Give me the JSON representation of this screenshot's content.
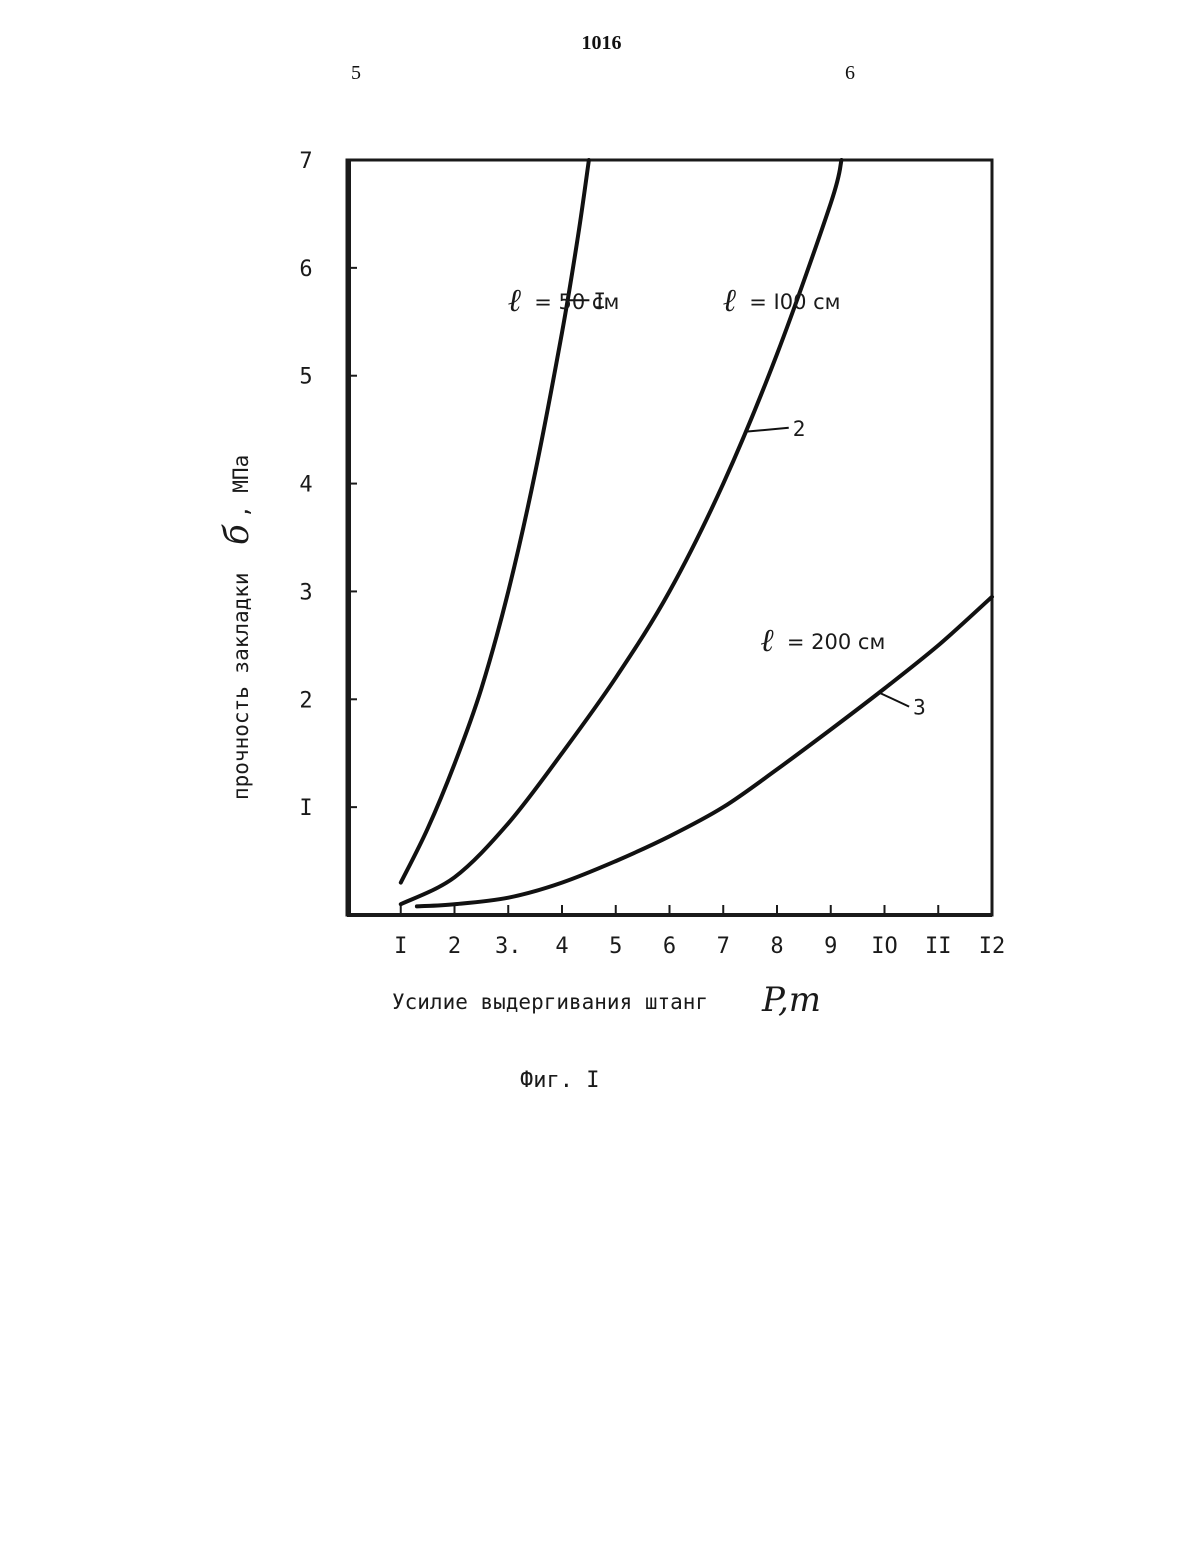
{
  "header": {
    "page_number": "1016",
    "column_left": "5",
    "column_right": "6"
  },
  "chart_data": {
    "type": "line",
    "xlabel_text": "Усилие выдергивания штанг",
    "xlabel_symbol": "P,т",
    "ylabel_text": "прочность закладки",
    "ylabel_symbol": "б",
    "ylabel_unit": ", МПа",
    "xlim": [
      0,
      12
    ],
    "ylim": [
      0,
      7
    ],
    "x_ticks": [
      {
        "value": 1,
        "label": "I"
      },
      {
        "value": 2,
        "label": "2"
      },
      {
        "value": 3,
        "label": "3."
      },
      {
        "value": 4,
        "label": "4"
      },
      {
        "value": 5,
        "label": "5"
      },
      {
        "value": 6,
        "label": "6"
      },
      {
        "value": 7,
        "label": "7"
      },
      {
        "value": 8,
        "label": "8"
      },
      {
        "value": 9,
        "label": "9"
      },
      {
        "value": 10,
        "label": "IO"
      },
      {
        "value": 11,
        "label": "II"
      },
      {
        "value": 12,
        "label": "I2"
      }
    ],
    "y_ticks": [
      {
        "value": 1,
        "label": "I"
      },
      {
        "value": 2,
        "label": "2"
      },
      {
        "value": 3,
        "label": "3"
      },
      {
        "value": 4,
        "label": "4"
      },
      {
        "value": 5,
        "label": "5"
      },
      {
        "value": 6,
        "label": "6"
      },
      {
        "value": 7,
        "label": "7"
      }
    ],
    "grid": false,
    "series": [
      {
        "number": "I",
        "label_symbol": "ℓ",
        "label_text": "= 50 см",
        "x": [
          1.0,
          1.5,
          2.0,
          2.5,
          3.0,
          3.5,
          4.0,
          4.3,
          4.5
        ],
        "y": [
          0.3,
          0.8,
          1.4,
          2.1,
          3.0,
          4.1,
          5.4,
          6.3,
          7.0
        ]
      },
      {
        "number": "2",
        "label_symbol": "ℓ",
        "label_text": "= I00 см",
        "x": [
          1.0,
          2.0,
          3.0,
          4.0,
          5.0,
          6.0,
          7.0,
          8.0,
          9.0,
          9.2
        ],
        "y": [
          0.1,
          0.35,
          0.85,
          1.5,
          2.2,
          3.0,
          4.0,
          5.2,
          6.6,
          7.0
        ]
      },
      {
        "number": "3",
        "label_symbol": "ℓ",
        "label_text": "= 200 см",
        "x": [
          1.3,
          2.0,
          3.0,
          4.0,
          5.0,
          6.0,
          7.0,
          8.0,
          9.0,
          10.0,
          11.0,
          12.0
        ],
        "y": [
          0.08,
          0.1,
          0.16,
          0.3,
          0.5,
          0.73,
          1.0,
          1.35,
          1.72,
          2.1,
          2.5,
          2.95
        ]
      }
    ]
  },
  "figure_caption": "Фиг. I"
}
